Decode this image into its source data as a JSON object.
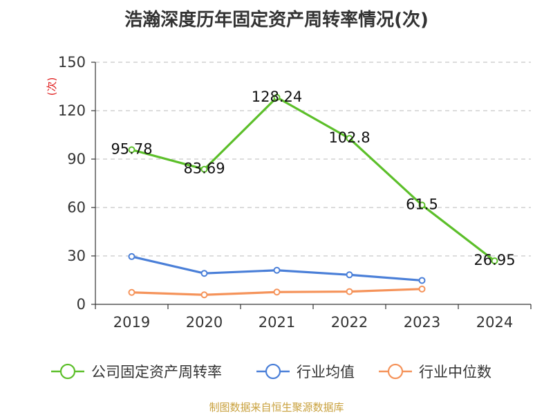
{
  "title": "浩瀚深度历年固定资产周转率情况(次)",
  "source": "制图数据来自恒生聚源数据库",
  "chart_data": {
    "type": "line",
    "title": "浩瀚深度历年固定资产周转率情况(次)",
    "ylabel": "(次)",
    "xlabel": "",
    "categories": [
      "2019",
      "2020",
      "2021",
      "2022",
      "2023",
      "2024"
    ],
    "ylim": [
      0,
      150
    ],
    "yticks": [
      0,
      30,
      60,
      90,
      120,
      150
    ],
    "grid": true,
    "legend_position": "bottom",
    "series": [
      {
        "name": "公司固定资产周转率",
        "color": "#5cbf2a",
        "values": [
          95.78,
          83.69,
          128.24,
          102.8,
          61.5,
          26.95
        ],
        "labels": [
          "95.78",
          "83.69",
          "128.24",
          "102.8",
          "61.5",
          "26.95"
        ]
      },
      {
        "name": "行业均值",
        "color": "#4a7fd8",
        "values": [
          29.6,
          19.2,
          21.1,
          18.3,
          14.8,
          null
        ]
      },
      {
        "name": "行业中位数",
        "color": "#f5935a",
        "values": [
          7.4,
          5.9,
          7.6,
          7.9,
          9.5,
          null
        ]
      }
    ]
  }
}
